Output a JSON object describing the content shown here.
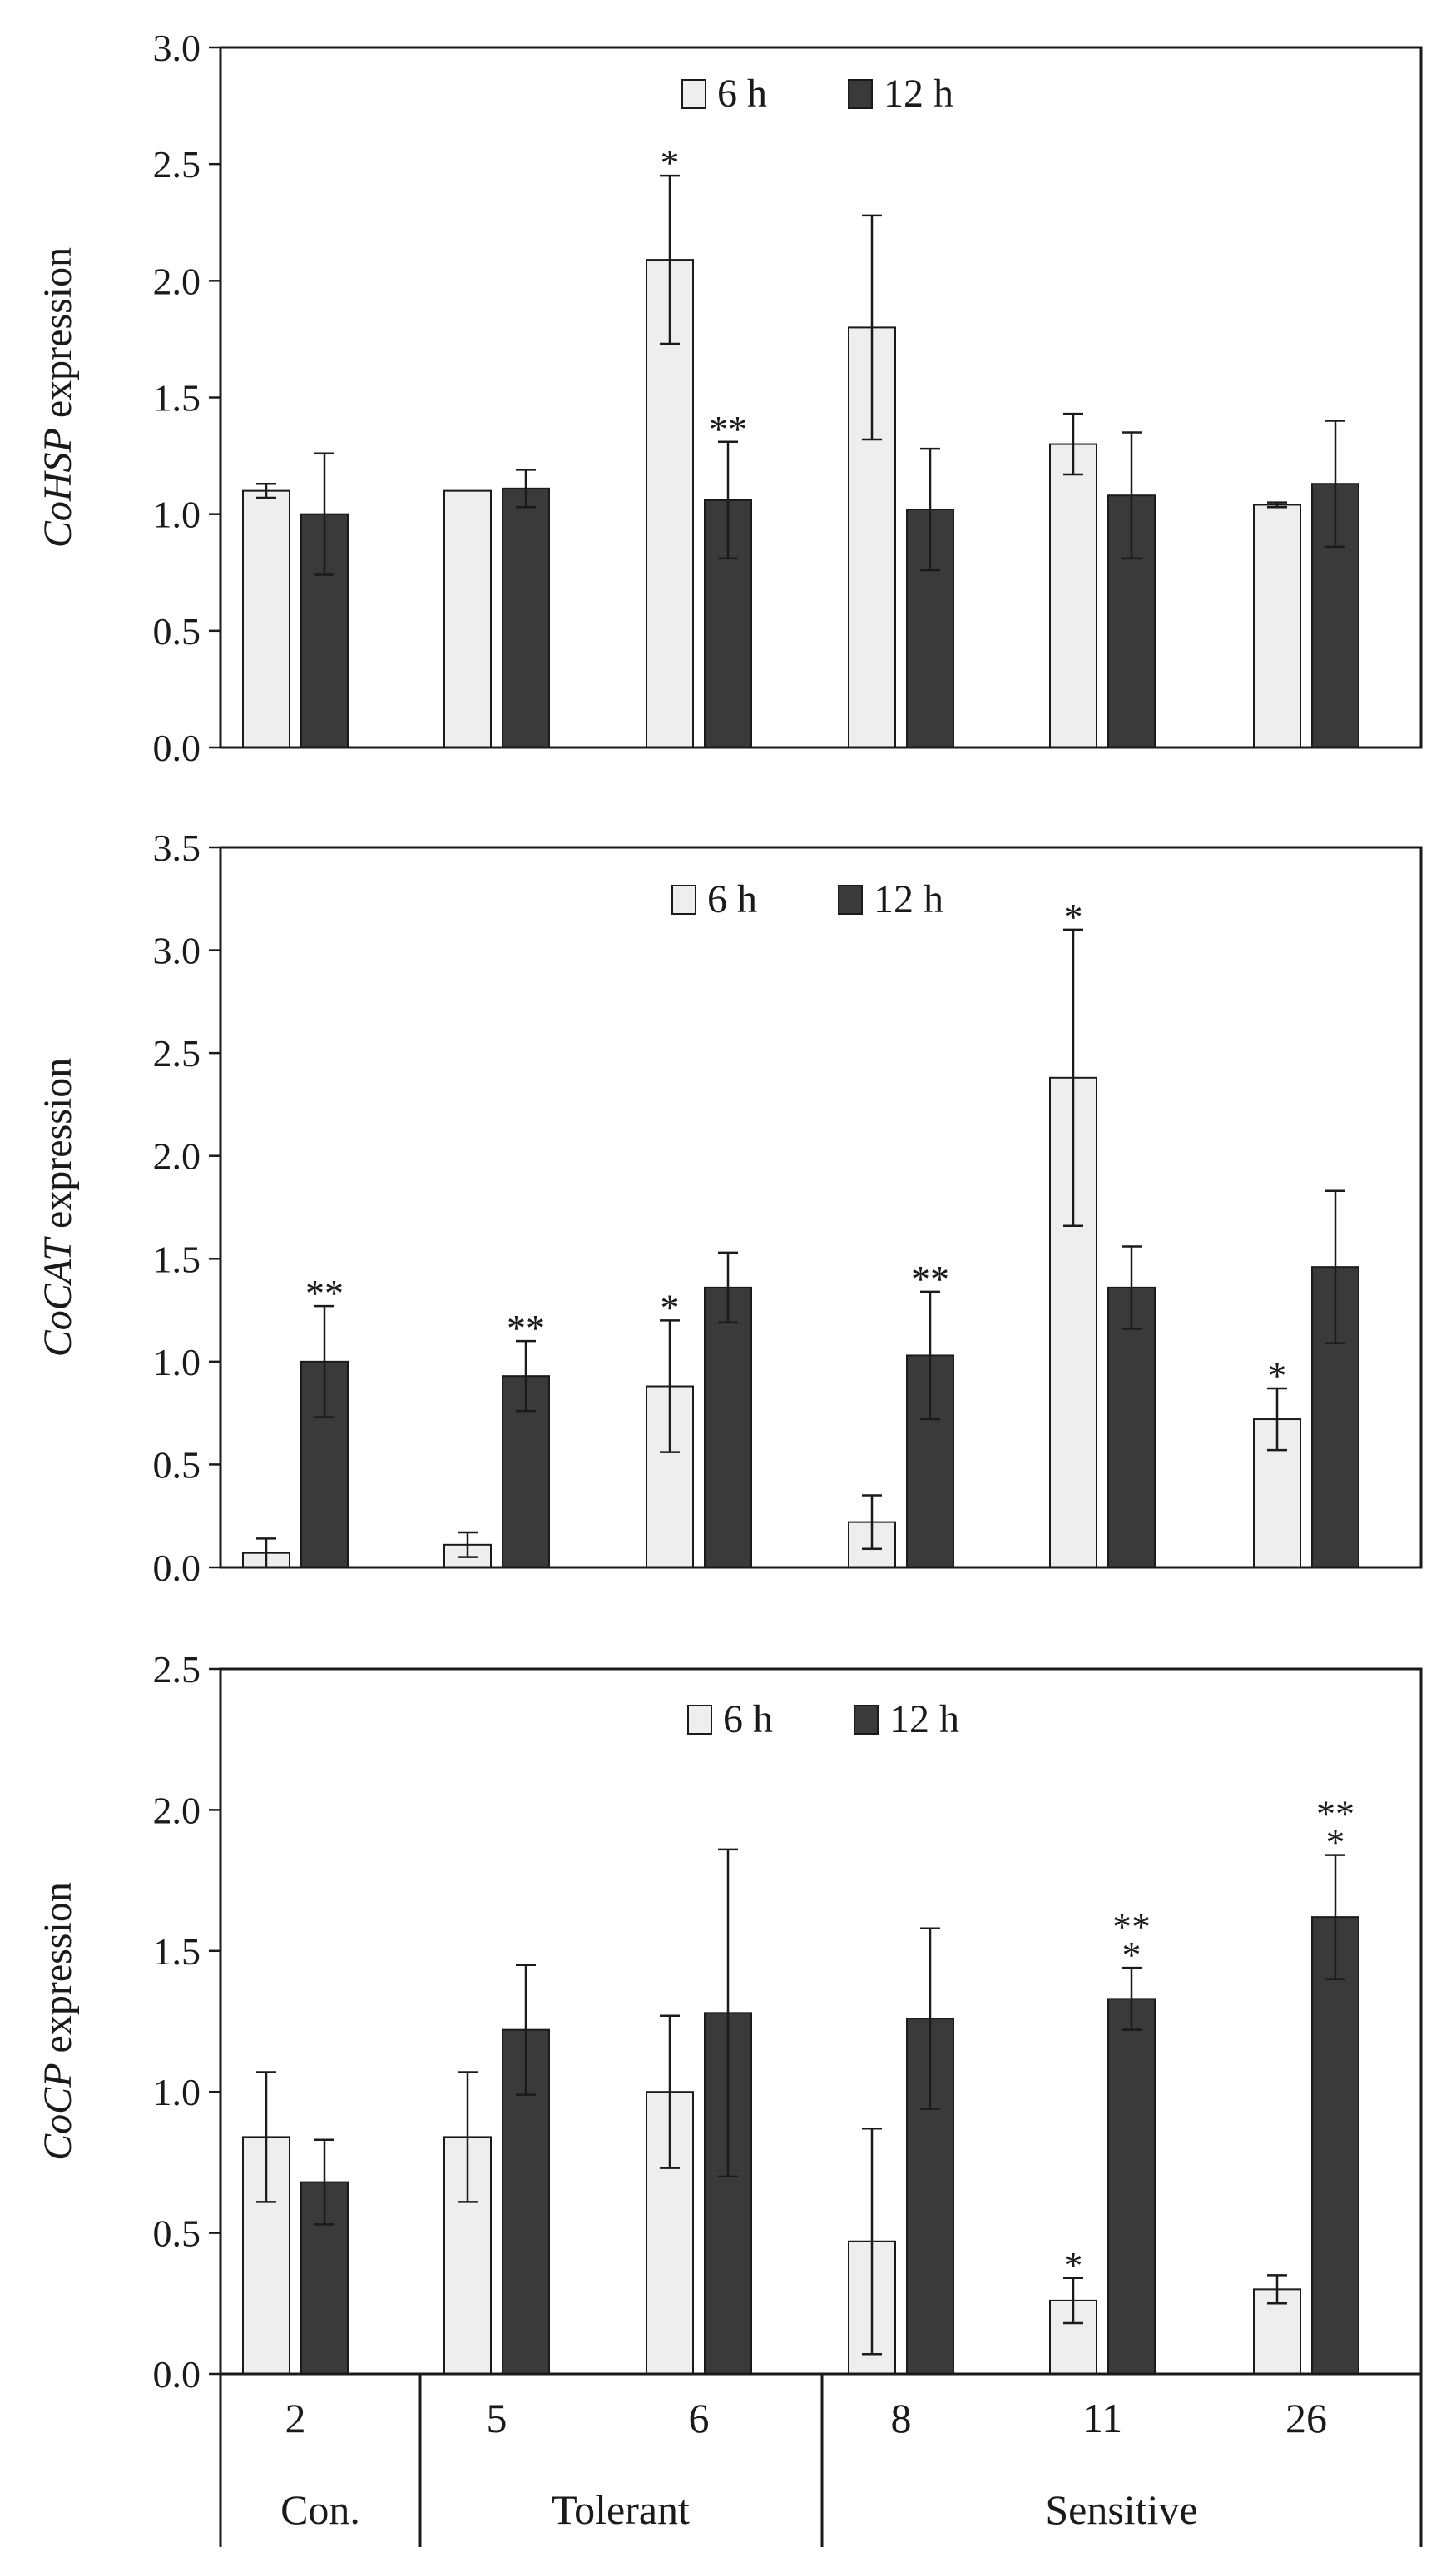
{
  "chart_data": [
    {
      "type": "bar",
      "ylabel_italic": "CoHSP",
      "ylabel_rest": " expression",
      "ylim": [
        0,
        3.0
      ],
      "yticks": [
        "0.0",
        "0.5",
        "1.0",
        "1.5",
        "2.0",
        "2.5",
        "3.0"
      ],
      "categories": [
        "2",
        "5",
        "6",
        "8",
        "11",
        "26"
      ],
      "legend": [
        "6 h",
        "12 h"
      ],
      "series": [
        {
          "name": "6 h",
          "color": "#eeeeee",
          "values": [
            1.1,
            1.1,
            2.09,
            1.8,
            1.3,
            1.04
          ],
          "errors": [
            0.03,
            0.0,
            0.36,
            0.48,
            0.13,
            0.01
          ],
          "marks": [
            "",
            "",
            "*",
            "",
            "",
            ""
          ]
        },
        {
          "name": "12 h",
          "color": "#3a3a3a",
          "values": [
            1.0,
            1.11,
            1.06,
            1.02,
            1.08,
            1.13
          ],
          "errors": [
            0.26,
            0.08,
            0.25,
            0.26,
            0.27,
            0.27
          ],
          "marks": [
            "",
            "",
            "**",
            "",
            "",
            ""
          ]
        }
      ]
    },
    {
      "type": "bar",
      "ylabel_italic": "CoCAT",
      "ylabel_rest": " expression",
      "ylim": [
        0,
        3.5
      ],
      "yticks": [
        "0.0",
        "0.5",
        "1.0",
        "1.5",
        "2.0",
        "2.5",
        "3.0",
        "3.5"
      ],
      "categories": [
        "2",
        "5",
        "6",
        "8",
        "11",
        "26"
      ],
      "legend": [
        "6 h",
        "12 h"
      ],
      "series": [
        {
          "name": "6 h",
          "color": "#eeeeee",
          "values": [
            0.07,
            0.11,
            0.88,
            0.22,
            2.38,
            0.72
          ],
          "errors": [
            0.07,
            0.06,
            0.32,
            0.13,
            0.72,
            0.15
          ],
          "marks": [
            "",
            "",
            "*",
            "",
            "*",
            "*"
          ]
        },
        {
          "name": "12 h",
          "color": "#3a3a3a",
          "values": [
            1.0,
            0.93,
            1.36,
            1.03,
            1.36,
            1.46
          ],
          "errors": [
            0.27,
            0.17,
            0.17,
            0.31,
            0.2,
            0.37
          ],
          "marks": [
            "**",
            "**",
            "",
            "**",
            "",
            ""
          ]
        }
      ]
    },
    {
      "type": "bar",
      "ylabel_italic": "CoCP",
      "ylabel_rest": " expression",
      "ylim": [
        0,
        2.5
      ],
      "yticks": [
        "0.0",
        "0.5",
        "1.0",
        "1.5",
        "2.0",
        "2.5"
      ],
      "categories": [
        "2",
        "5",
        "6",
        "8",
        "11",
        "26"
      ],
      "legend": [
        "6 h",
        "12 h"
      ],
      "series": [
        {
          "name": "6 h",
          "color": "#eeeeee",
          "values": [
            0.84,
            0.84,
            1.0,
            0.47,
            0.26,
            0.3
          ],
          "errors": [
            0.23,
            0.23,
            0.27,
            0.4,
            0.08,
            0.05
          ],
          "marks": [
            "",
            "",
            "",
            "",
            "*",
            ""
          ]
        },
        {
          "name": "12 h",
          "color": "#3a3a3a",
          "values": [
            0.68,
            1.22,
            1.28,
            1.26,
            1.33,
            1.62
          ],
          "errors": [
            0.15,
            0.23,
            0.58,
            0.32,
            0.11,
            0.22
          ],
          "marks": [
            "",
            "",
            "",
            "",
            "**\n*",
            "**\n*"
          ]
        }
      ]
    }
  ],
  "x_categories": [
    "2",
    "5",
    "6",
    "8",
    "11",
    "26"
  ],
  "groups": [
    {
      "label": "Con.",
      "members": [
        "2"
      ]
    },
    {
      "label": "Tolerant",
      "members": [
        "5",
        "6"
      ]
    },
    {
      "label": "Sensitive",
      "members": [
        "8",
        "11",
        "26"
      ]
    }
  ]
}
